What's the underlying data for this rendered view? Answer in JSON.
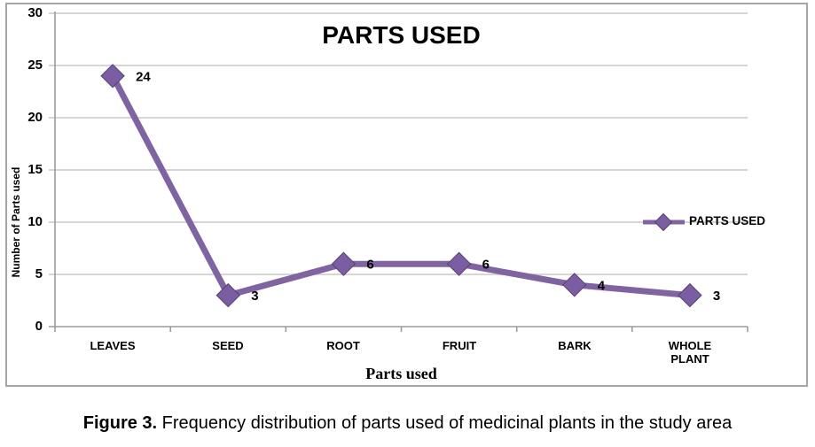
{
  "chart_data": {
    "type": "line",
    "title": "PARTS USED",
    "categories": [
      "LEAVES",
      "SEED",
      "ROOT",
      "FRUIT",
      "BARK",
      "WHOLE PLANT"
    ],
    "series": [
      {
        "name": "PARTS USED",
        "values": [
          24,
          3,
          6,
          6,
          4,
          3
        ]
      }
    ],
    "data_labels_shown": true,
    "xlabel": "Parts used",
    "ylabel": "Number of Parts used",
    "ylim": [
      0,
      30
    ],
    "yticks": [
      0,
      5,
      10,
      15,
      20,
      25,
      30
    ],
    "grid": true,
    "legend": {
      "label": "PARTS USED",
      "position": "right"
    },
    "colors": {
      "series": "#8064a2",
      "marker_fill": "#7b5da4",
      "marker_edge": "#57406e",
      "gridline": "#c9c9c9",
      "axis": "#9c9c9c",
      "frame_border": "#a6a6a6",
      "text": "#000000"
    }
  },
  "caption": {
    "label": "Figure 3.",
    "text": " Frequency distribution of parts used of medicinal plants in the study area"
  }
}
